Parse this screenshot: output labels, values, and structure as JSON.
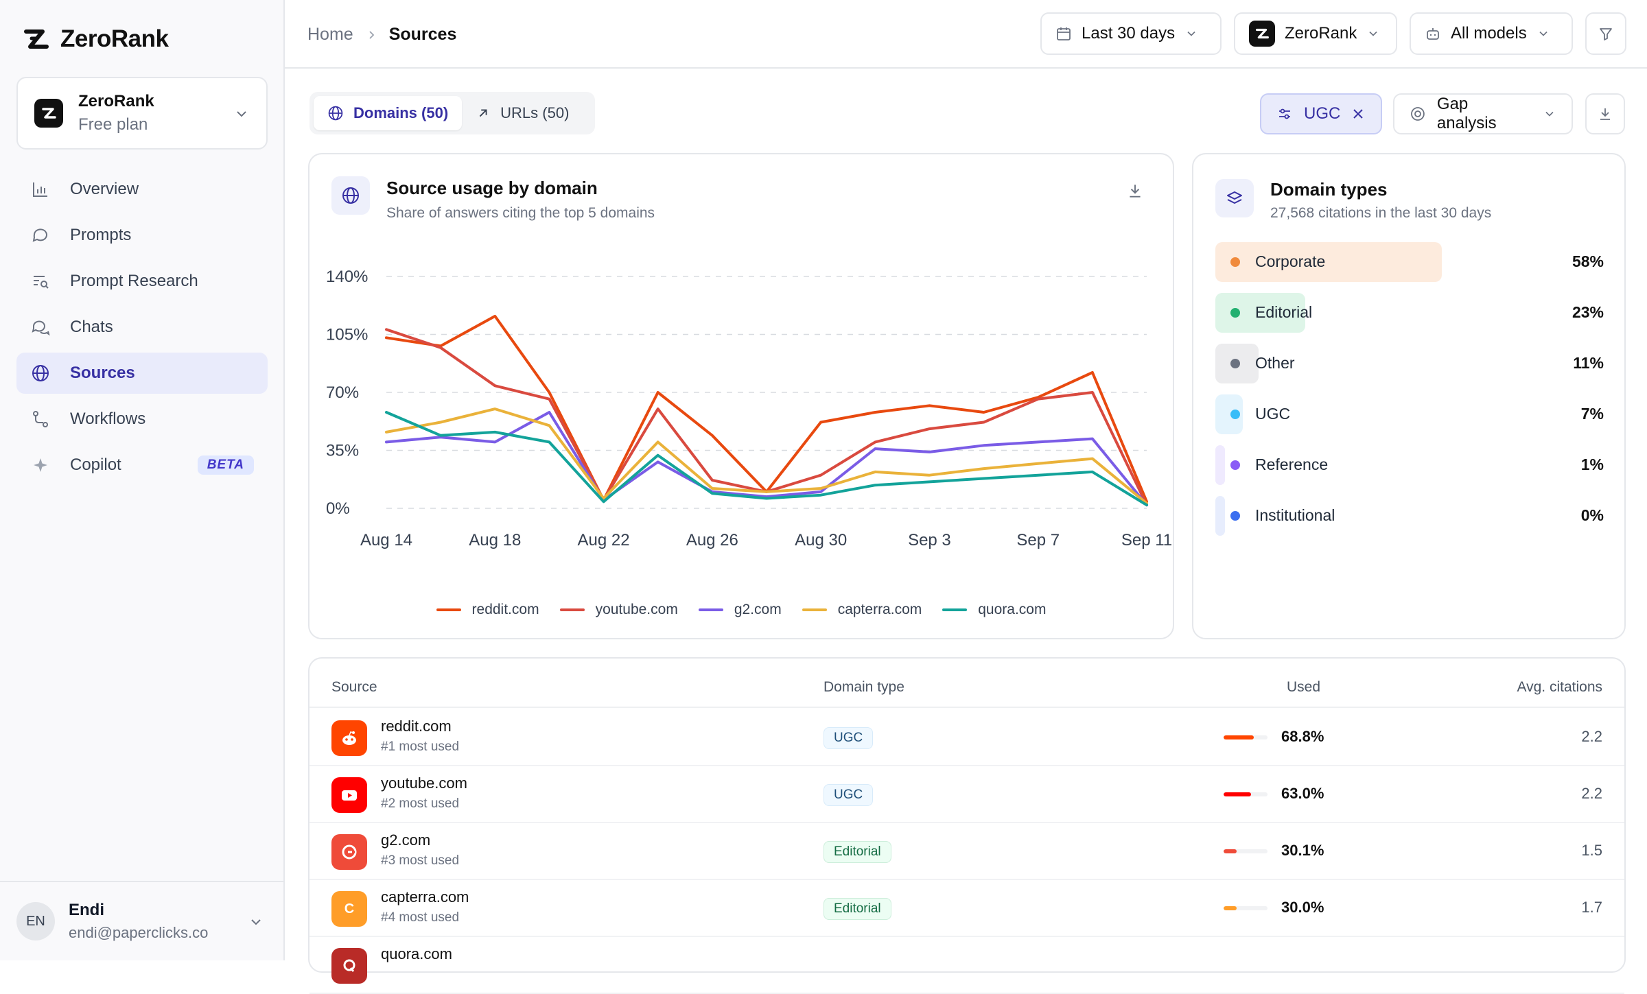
{
  "app": {
    "name": "ZeroRank"
  },
  "org": {
    "name": "ZeroRank",
    "plan": "Free plan"
  },
  "nav": [
    {
      "label": "Overview",
      "icon": "bar-chart-icon"
    },
    {
      "label": "Prompts",
      "icon": "chat-bubble-icon"
    },
    {
      "label": "Prompt Research",
      "icon": "search-list-icon"
    },
    {
      "label": "Chats",
      "icon": "chats-icon"
    },
    {
      "label": "Sources",
      "icon": "globe-icon",
      "active": true
    },
    {
      "label": "Workflows",
      "icon": "workflow-icon"
    },
    {
      "label": "Copilot",
      "icon": "sparkle-icon",
      "badge": "BETA"
    }
  ],
  "user": {
    "initials": "EN",
    "name": "Endi",
    "email": "endi@paperclicks.co"
  },
  "breadcrumb": {
    "home": "Home",
    "current": "Sources"
  },
  "topbar": {
    "date_range": "Last 30 days",
    "brand": "ZeroRank",
    "models": "All models"
  },
  "view_tabs": [
    {
      "label": "Domains (50)",
      "active": true
    },
    {
      "label": "URLs (50)"
    }
  ],
  "filters": {
    "chip": "UGC",
    "gap": "Gap analysis"
  },
  "chart_card": {
    "title": "Source usage by domain",
    "subtitle": "Share of answers citing the top 5 domains"
  },
  "chart_data": {
    "type": "line",
    "title": "Source usage by domain",
    "x": [
      "Aug 14",
      "Aug 16",
      "Aug 18",
      "Aug 20",
      "Aug 22",
      "Aug 24",
      "Aug 26",
      "Aug 28",
      "Aug 30",
      "Sep 1",
      "Sep 3",
      "Sep 5",
      "Sep 7",
      "Sep 9",
      "Sep 10"
    ],
    "xticks": [
      "Aug 14",
      "Aug 18",
      "Aug 22",
      "Aug 26",
      "Aug 30",
      "Sep 3",
      "Sep 7",
      "Sep 11"
    ],
    "yticks": [
      "0%",
      "35%",
      "70%",
      "105%",
      "140%"
    ],
    "ylim": [
      0,
      140
    ],
    "grid": true,
    "legend": "bottom",
    "series": [
      {
        "name": "reddit.com",
        "color": "#e8490f",
        "values": [
          103,
          98,
          116,
          70,
          5,
          70,
          44,
          10,
          52,
          58,
          62,
          58,
          67,
          82,
          4
        ]
      },
      {
        "name": "youtube.com",
        "color": "#d94a3f",
        "values": [
          108,
          97,
          74,
          66,
          5,
          60,
          17,
          10,
          20,
          40,
          48,
          52,
          66,
          70,
          2
        ]
      },
      {
        "name": "g2.com",
        "color": "#7a5ce6",
        "values": [
          40,
          43,
          40,
          58,
          5,
          28,
          10,
          7,
          10,
          36,
          34,
          38,
          40,
          42,
          2
        ]
      },
      {
        "name": "capterra.com",
        "color": "#eab23a",
        "values": [
          46,
          52,
          60,
          50,
          6,
          40,
          12,
          10,
          12,
          22,
          20,
          24,
          27,
          30,
          3
        ]
      },
      {
        "name": "quora.com",
        "color": "#13a39a",
        "values": [
          58,
          44,
          46,
          40,
          4,
          32,
          9,
          6,
          8,
          14,
          16,
          18,
          20,
          22,
          2
        ]
      }
    ]
  },
  "domain_types": {
    "title": "Domain types",
    "subtitle": "27,568 citations in the last 30 days",
    "items": [
      {
        "label": "Corporate",
        "pct": "58%",
        "value": 58,
        "dot": "#f08a3c",
        "bg": "#fdebdd"
      },
      {
        "label": "Editorial",
        "pct": "23%",
        "value": 23,
        "dot": "#22b070",
        "bg": "#def5e8"
      },
      {
        "label": "Other",
        "pct": "11%",
        "value": 11,
        "dot": "#6b7280",
        "bg": "#ececee"
      },
      {
        "label": "UGC",
        "pct": "7%",
        "value": 7,
        "dot": "#38bdf8",
        "bg": "#e4f4fd"
      },
      {
        "label": "Reference",
        "pct": "1%",
        "value": 1,
        "dot": "#8b5cf6",
        "bg": "#efeafe"
      },
      {
        "label": "Institutional",
        "pct": "0%",
        "value": 0,
        "dot": "#3b6ff0",
        "bg": "#e7edfd"
      }
    ]
  },
  "table": {
    "columns": [
      "Source",
      "Domain type",
      "Used",
      "Avg. citations"
    ],
    "rows": [
      {
        "domain": "reddit.com",
        "rank": "#1 most used",
        "type": "UGC",
        "type_class": "ugc",
        "used": "68.8%",
        "used_value": 68.8,
        "bar_color": "#ff4500",
        "avg": "2.2",
        "fav_bg": "#ff4500",
        "fav": "reddit-logo-icon"
      },
      {
        "domain": "youtube.com",
        "rank": "#2 most used",
        "type": "UGC",
        "type_class": "ugc",
        "used": "63.0%",
        "used_value": 63.0,
        "bar_color": "#ff0000",
        "avg": "2.2",
        "fav_bg": "#ff0000",
        "fav": "youtube-logo-icon"
      },
      {
        "domain": "g2.com",
        "rank": "#3 most used",
        "type": "Editorial",
        "type_class": "edi",
        "used": "30.1%",
        "used_value": 30.1,
        "bar_color": "#ef4b39",
        "avg": "1.5",
        "fav_bg": "#ef4b39",
        "fav": "g2-logo-icon"
      },
      {
        "domain": "capterra.com",
        "rank": "#4 most used",
        "type": "Editorial",
        "type_class": "edi",
        "used": "30.0%",
        "used_value": 30.0,
        "bar_color": "#ff9d28",
        "avg": "1.7",
        "fav_bg": "#ff9d28",
        "fav_letter": "C"
      },
      {
        "domain": "quora.com",
        "rank": "",
        "type": "",
        "type_class": "ugc",
        "used": "",
        "used_value": 0,
        "bar_color": "#b92b27",
        "avg": "",
        "fav_bg": "#b92b27",
        "fav": "quora-logo-icon"
      }
    ]
  }
}
